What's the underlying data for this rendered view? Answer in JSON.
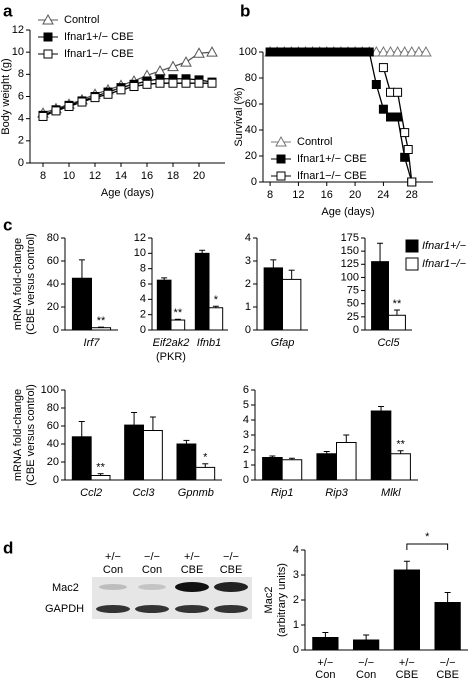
{
  "chart_data": [
    {
      "type": "line",
      "panel": "a",
      "ylabel": "Body weight (g)",
      "xlabel": "Age (days)",
      "x": [
        8,
        9,
        10,
        11,
        12,
        13,
        14,
        15,
        16,
        17,
        18,
        19,
        20,
        21
      ],
      "xlim": [
        7,
        22
      ],
      "xticks": [
        8,
        10,
        12,
        14,
        16,
        18,
        20
      ],
      "ylim": [
        0,
        12
      ],
      "yticks": [
        0,
        2,
        4,
        6,
        8,
        10,
        12
      ],
      "legend": "upper left",
      "series": [
        {
          "name": "Control",
          "color": "#555555",
          "marker": "triangle",
          "marker_fill": "#ffffff",
          "values": [
            4.5,
            4.9,
            5.3,
            5.7,
            6.2,
            6.6,
            7.0,
            7.4,
            7.9,
            8.3,
            8.7,
            9.1,
            9.9,
            10.0
          ]
        },
        {
          "name": "Ifnar1+/− CBE",
          "color": "#000000",
          "marker": "square",
          "marker_fill": "#000000",
          "values": [
            4.3,
            4.8,
            5.2,
            5.6,
            6.0,
            6.4,
            6.8,
            7.1,
            7.4,
            7.6,
            7.6,
            7.6,
            7.5,
            7.3
          ]
        },
        {
          "name": "Ifnar1−/− CBE",
          "color": "#000000",
          "marker": "square",
          "marker_fill": "#ffffff",
          "values": [
            4.2,
            4.7,
            5.1,
            5.5,
            5.9,
            6.2,
            6.6,
            6.9,
            7.1,
            7.2,
            7.2,
            7.2,
            7.2,
            7.2
          ]
        }
      ]
    },
    {
      "type": "line",
      "panel": "b",
      "ylabel": "Survival (%)",
      "xlabel": "Age (days)",
      "xlim": [
        7,
        31
      ],
      "xticks": [
        8,
        12,
        16,
        20,
        24,
        28
      ],
      "ylim": [
        0,
        100
      ],
      "yticks": [
        0,
        20,
        40,
        60,
        80,
        100
      ],
      "legend": "lower left",
      "series": [
        {
          "name": "Control",
          "color": "#777777",
          "marker": "triangle",
          "marker_fill": "#ffffff",
          "x": [
            8,
            9,
            10,
            11,
            12,
            13,
            14,
            15,
            16,
            17,
            18,
            19,
            20,
            21,
            22,
            23,
            24,
            25,
            26,
            27,
            28,
            29,
            30
          ],
          "values": [
            100,
            100,
            100,
            100,
            100,
            100,
            100,
            100,
            100,
            100,
            100,
            100,
            100,
            100,
            100,
            100,
            100,
            100,
            100,
            100,
            100,
            100,
            100
          ]
        },
        {
          "name": "Ifnar1+/− CBE",
          "color": "#000000",
          "marker": "square",
          "marker_fill": "#000000",
          "x": [
            8,
            9,
            10,
            11,
            12,
            13,
            14,
            15,
            16,
            17,
            18,
            19,
            20,
            21,
            22,
            23,
            24,
            25,
            26,
            27,
            28
          ],
          "values": [
            100,
            100,
            100,
            100,
            100,
            100,
            100,
            100,
            100,
            100,
            100,
            100,
            100,
            100,
            100,
            75,
            56,
            50,
            50,
            19,
            0
          ]
        },
        {
          "name": "Ifnar1−/− CBE",
          "color": "#000000",
          "marker": "square",
          "marker_fill": "#ffffff",
          "x": [
            24,
            25,
            26,
            27,
            27.5,
            28
          ],
          "values": [
            88,
            69,
            69,
            38,
            25,
            0
          ]
        }
      ]
    },
    {
      "type": "bar",
      "panel": "c",
      "ylabel": [
        "mRNA fold-change",
        "(CBE versus control)"
      ],
      "categories": [
        "Irf7"
      ],
      "ylim": [
        0,
        80
      ],
      "yticks": [
        0,
        20,
        40,
        60,
        80
      ],
      "series": [
        {
          "color": "#000000",
          "values": [
            45
          ],
          "errors": [
            16
          ],
          "significance": [
            null
          ]
        },
        {
          "color": "#ffffff",
          "values": [
            2
          ],
          "errors": [
            0.5
          ],
          "significance": [
            "**"
          ]
        }
      ]
    },
    {
      "type": "bar",
      "categories": [
        "Eif2ak2",
        "Ifnb1"
      ],
      "category_notes": [
        "(PKR)",
        null
      ],
      "ylim": [
        0,
        12
      ],
      "yticks": [
        0,
        2,
        4,
        6,
        8,
        10,
        12
      ],
      "series": [
        {
          "color": "#000000",
          "values": [
            6.5,
            10
          ],
          "errors": [
            0.3,
            0.4
          ],
          "significance": [
            null,
            null
          ]
        },
        {
          "color": "#ffffff",
          "values": [
            1.3,
            2.9
          ],
          "errors": [
            0.1,
            0.2
          ],
          "significance": [
            "**",
            "*"
          ]
        }
      ]
    },
    {
      "type": "bar",
      "categories": [
        "Gfap"
      ],
      "ylim": [
        0,
        4
      ],
      "yticks": [
        0,
        1,
        2,
        3,
        4
      ],
      "series": [
        {
          "color": "#000000",
          "values": [
            2.7
          ],
          "errors": [
            0.35
          ],
          "significance": [
            null
          ]
        },
        {
          "color": "#ffffff",
          "values": [
            2.2
          ],
          "errors": [
            0.4
          ],
          "significance": [
            null
          ]
        }
      ]
    },
    {
      "type": "bar",
      "categories": [
        "Ccl5"
      ],
      "ylim": [
        0,
        175
      ],
      "yticks": [
        0,
        25,
        50,
        75,
        100,
        125,
        150,
        175
      ],
      "series": [
        {
          "name": "Ifnar1+/−",
          "color": "#000000",
          "values": [
            130
          ],
          "errors": [
            35
          ],
          "significance": [
            null
          ]
        },
        {
          "name": "Ifnar1−/−",
          "color": "#ffffff",
          "values": [
            28
          ],
          "errors": [
            10
          ],
          "significance": [
            "**"
          ]
        }
      ]
    },
    {
      "type": "bar",
      "ylabel": [
        "mRNA fold-change",
        "(CBE versus control)"
      ],
      "categories": [
        "Ccl2",
        "Ccl3",
        "Gpnmb"
      ],
      "ylim": [
        0,
        100
      ],
      "yticks": [
        0,
        20,
        40,
        60,
        80,
        100
      ],
      "series": [
        {
          "color": "#000000",
          "values": [
            48,
            61,
            40
          ],
          "errors": [
            17,
            14,
            4
          ],
          "significance": [
            null,
            null,
            null
          ]
        },
        {
          "color": "#ffffff",
          "values": [
            5,
            55,
            14
          ],
          "errors": [
            2,
            15,
            4
          ],
          "significance": [
            "**",
            null,
            "*"
          ]
        }
      ]
    },
    {
      "type": "bar",
      "categories": [
        "Rip1",
        "Rip3",
        "Mlkl"
      ],
      "ylim": [
        0,
        6
      ],
      "yticks": [
        0,
        1,
        2,
        3,
        4,
        5,
        6
      ],
      "series": [
        {
          "color": "#000000",
          "values": [
            1.5,
            1.75,
            4.6
          ],
          "errors": [
            0.1,
            0.15,
            0.3
          ],
          "significance": [
            null,
            null,
            null
          ]
        },
        {
          "color": "#ffffff",
          "values": [
            1.35,
            2.5,
            1.75
          ],
          "errors": [
            0.1,
            0.5,
            0.2
          ],
          "significance": [
            null,
            null,
            "**"
          ]
        }
      ]
    },
    {
      "type": "bar",
      "panel": "d",
      "ylabel": [
        "Mac2",
        "(arbitrary units)"
      ],
      "categories": [
        "+/−",
        "−/−",
        "+/−",
        "−/−"
      ],
      "categories_line2": [
        "Con",
        "Con",
        "CBE",
        "CBE"
      ],
      "ylim": [
        0,
        4
      ],
      "yticks": [
        0,
        1,
        2,
        3,
        4
      ],
      "bracket_label": "*",
      "series": [
        {
          "color": "#000000",
          "values": [
            0.5,
            0.4,
            3.2,
            1.9
          ],
          "errors": [
            0.2,
            0.2,
            0.35,
            0.4
          ]
        }
      ]
    }
  ],
  "blot": {
    "columns": [
      [
        "+/−",
        "Con"
      ],
      [
        "−/−",
        "Con"
      ],
      [
        "+/−",
        "CBE"
      ],
      [
        "−/−",
        "CBE"
      ]
    ],
    "rows": [
      "Mac2",
      "GAPDH"
    ]
  }
}
